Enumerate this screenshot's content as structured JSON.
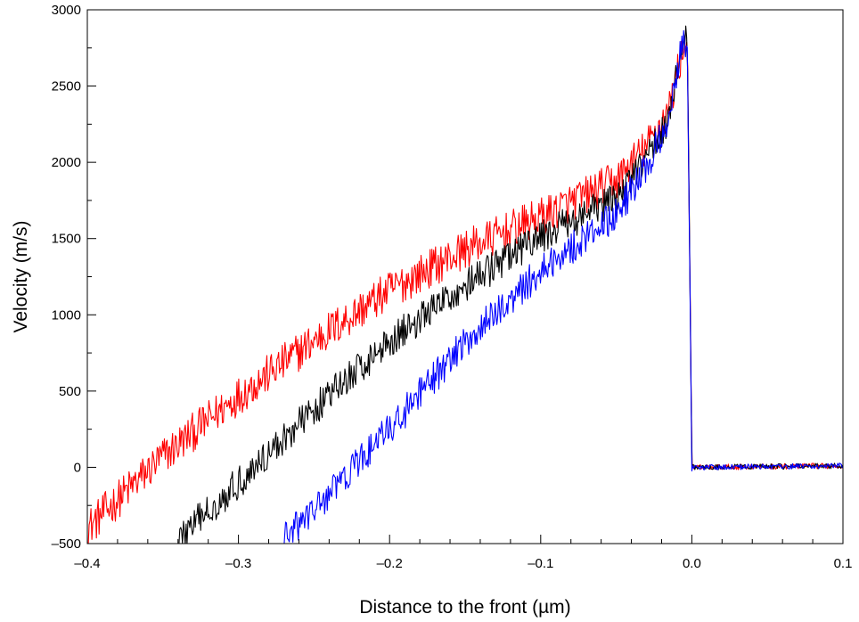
{
  "chart_data": {
    "type": "line",
    "title": "",
    "xlabel": "Distance to the front (µm)",
    "ylabel": "Velocity (m/s)",
    "xlim": [
      -0.4,
      0.1
    ],
    "ylim": [
      -500,
      3000
    ],
    "xticks": [
      -0.4,
      -0.3,
      -0.2,
      -0.1,
      0.0,
      0.1
    ],
    "xtick_labels": [
      "–0.4",
      "–0.3",
      "–0.2",
      "–0.1",
      "0.0",
      "0.1"
    ],
    "yticks": [
      -500,
      0,
      500,
      1000,
      1500,
      2000,
      2500,
      3000
    ],
    "ytick_labels": [
      "–500",
      "0",
      "500",
      "1000",
      "1500",
      "2000",
      "2500",
      "3000"
    ],
    "grid": false,
    "legend": "none",
    "series": [
      {
        "color": "#ff0000",
        "noise": 130,
        "points": [
          [
            -0.4,
            -400
          ],
          [
            -0.35,
            70
          ],
          [
            -0.3,
            470
          ],
          [
            -0.25,
            830
          ],
          [
            -0.2,
            1160
          ],
          [
            -0.15,
            1430
          ],
          [
            -0.1,
            1640
          ],
          [
            -0.05,
            1880
          ],
          [
            -0.03,
            2100
          ],
          [
            -0.015,
            2350
          ],
          [
            -0.007,
            2700
          ],
          [
            -0.003,
            2800
          ],
          [
            -0.001,
            1000
          ],
          [
            0.0,
            0
          ],
          [
            0.1,
            10
          ]
        ]
      },
      {
        "color": "#000000",
        "noise": 110,
        "points": [
          [
            -0.34,
            -470
          ],
          [
            -0.3,
            -100
          ],
          [
            -0.25,
            380
          ],
          [
            -0.2,
            830
          ],
          [
            -0.15,
            1190
          ],
          [
            -0.1,
            1510
          ],
          [
            -0.05,
            1760
          ],
          [
            -0.03,
            2020
          ],
          [
            -0.015,
            2300
          ],
          [
            -0.007,
            2750
          ],
          [
            -0.003,
            2800
          ],
          [
            -0.001,
            1000
          ],
          [
            0.0,
            0
          ],
          [
            0.1,
            10
          ]
        ]
      },
      {
        "color": "#0000ff",
        "noise": 110,
        "points": [
          [
            -0.27,
            -470
          ],
          [
            -0.25,
            -280
          ],
          [
            -0.2,
            250
          ],
          [
            -0.15,
            820
          ],
          [
            -0.1,
            1290
          ],
          [
            -0.05,
            1660
          ],
          [
            -0.03,
            1960
          ],
          [
            -0.015,
            2290
          ],
          [
            -0.007,
            2780
          ],
          [
            -0.003,
            2780
          ],
          [
            -0.001,
            1000
          ],
          [
            0.0,
            0
          ],
          [
            0.1,
            10
          ]
        ]
      }
    ]
  }
}
